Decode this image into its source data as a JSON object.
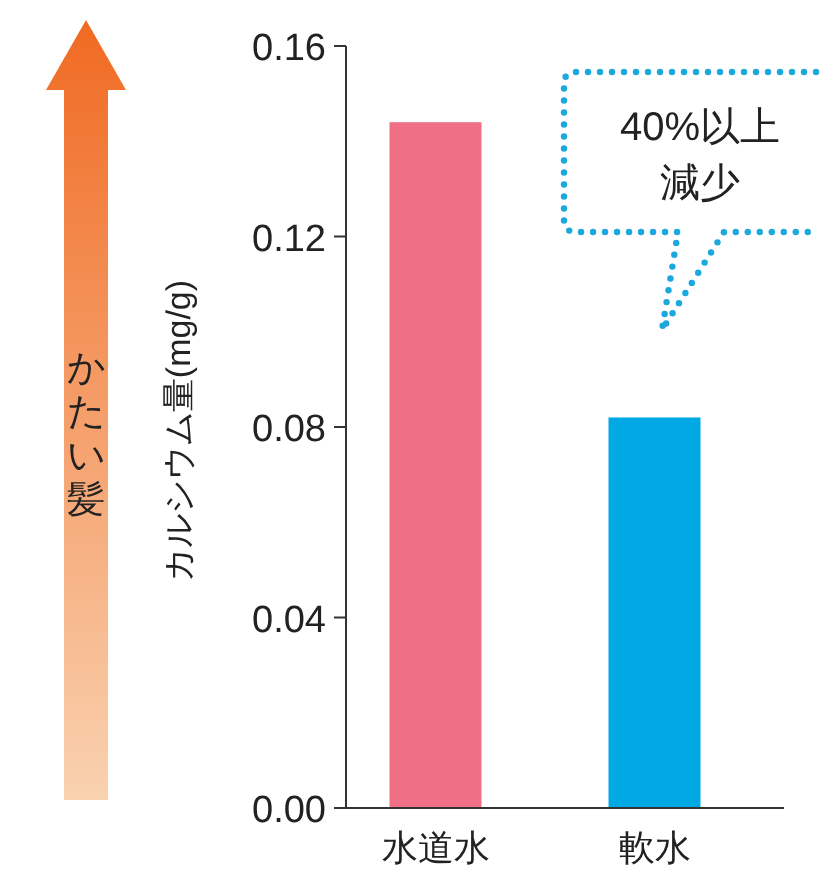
{
  "chart_data": {
    "type": "bar",
    "ylabel": "カルシウム量(mg/g)",
    "categories": [
      "水道水",
      "軟水"
    ],
    "values": [
      0.144,
      0.082
    ],
    "colors": [
      "#ef6f84",
      "#00a9e4"
    ],
    "ylim": [
      0,
      0.16
    ],
    "yticks": [
      {
        "value": 0,
        "label": "0.00"
      },
      0.04,
      0.08,
      0.12,
      0.16
    ],
    "grid": false,
    "annotations": [
      "かたい髪",
      "40%以上",
      "減少"
    ]
  }
}
